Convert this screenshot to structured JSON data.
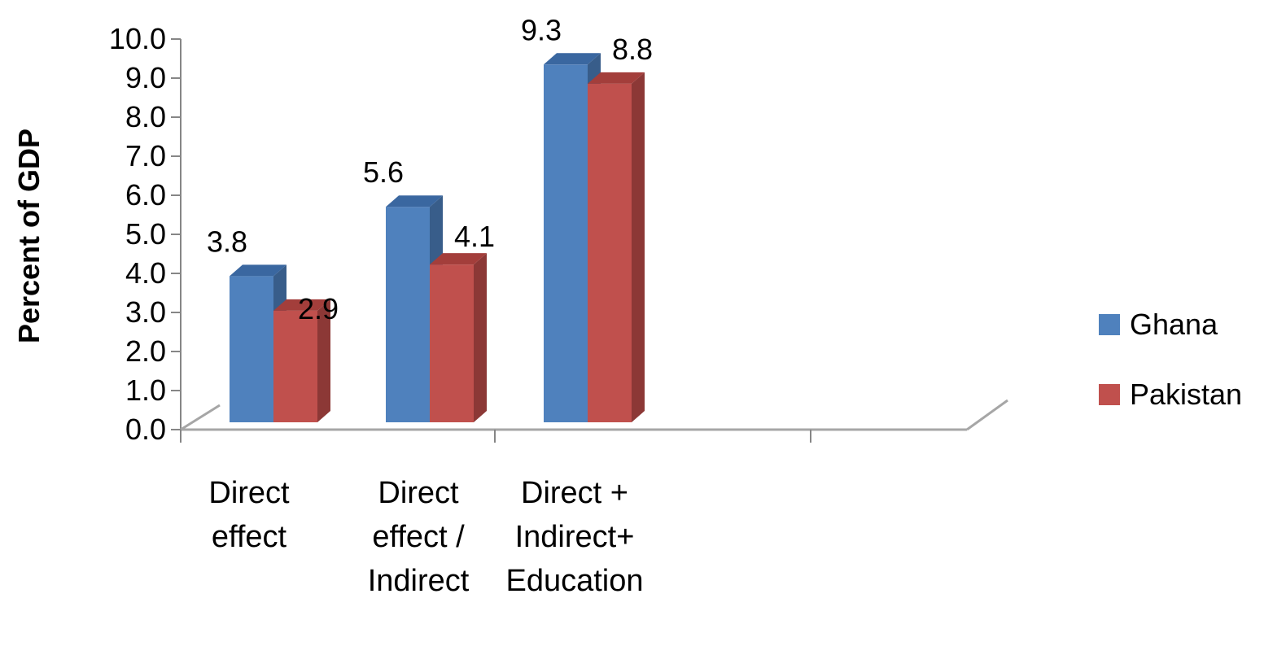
{
  "chart_data": {
    "type": "bar",
    "categories": [
      [
        "Direct",
        "effect"
      ],
      [
        "Direct",
        "effect /",
        "Indirect"
      ],
      [
        "Direct   +",
        "Indirect+",
        "Education"
      ]
    ],
    "series": [
      {
        "name": "Ghana",
        "values": [
          3.8,
          5.6,
          9.3
        ],
        "color": "#4F81BD",
        "side_color": "#385D8A",
        "top_color": "#3A67A0"
      },
      {
        "name": "Pakistan",
        "values": [
          2.9,
          4.1,
          8.8
        ],
        "color": "#C0504D",
        "side_color": "#8C3836",
        "top_color": "#A33E3B"
      }
    ],
    "value_labels": [
      [
        "3.8",
        "5.6",
        "9.3"
      ],
      [
        "2.9",
        "4.1",
        "8.8"
      ]
    ],
    "ylabel": "Percent of GDP",
    "xlabel": "",
    "ylim": [
      0,
      10
    ],
    "yticks": [
      "0.0",
      "1.0",
      "2.0",
      "3.0",
      "4.0",
      "5.0",
      "6.0",
      "7.0",
      "8.0",
      "9.0",
      "10.0"
    ],
    "legend_position": "right",
    "grid": false,
    "style": "3d-clustered-column"
  }
}
